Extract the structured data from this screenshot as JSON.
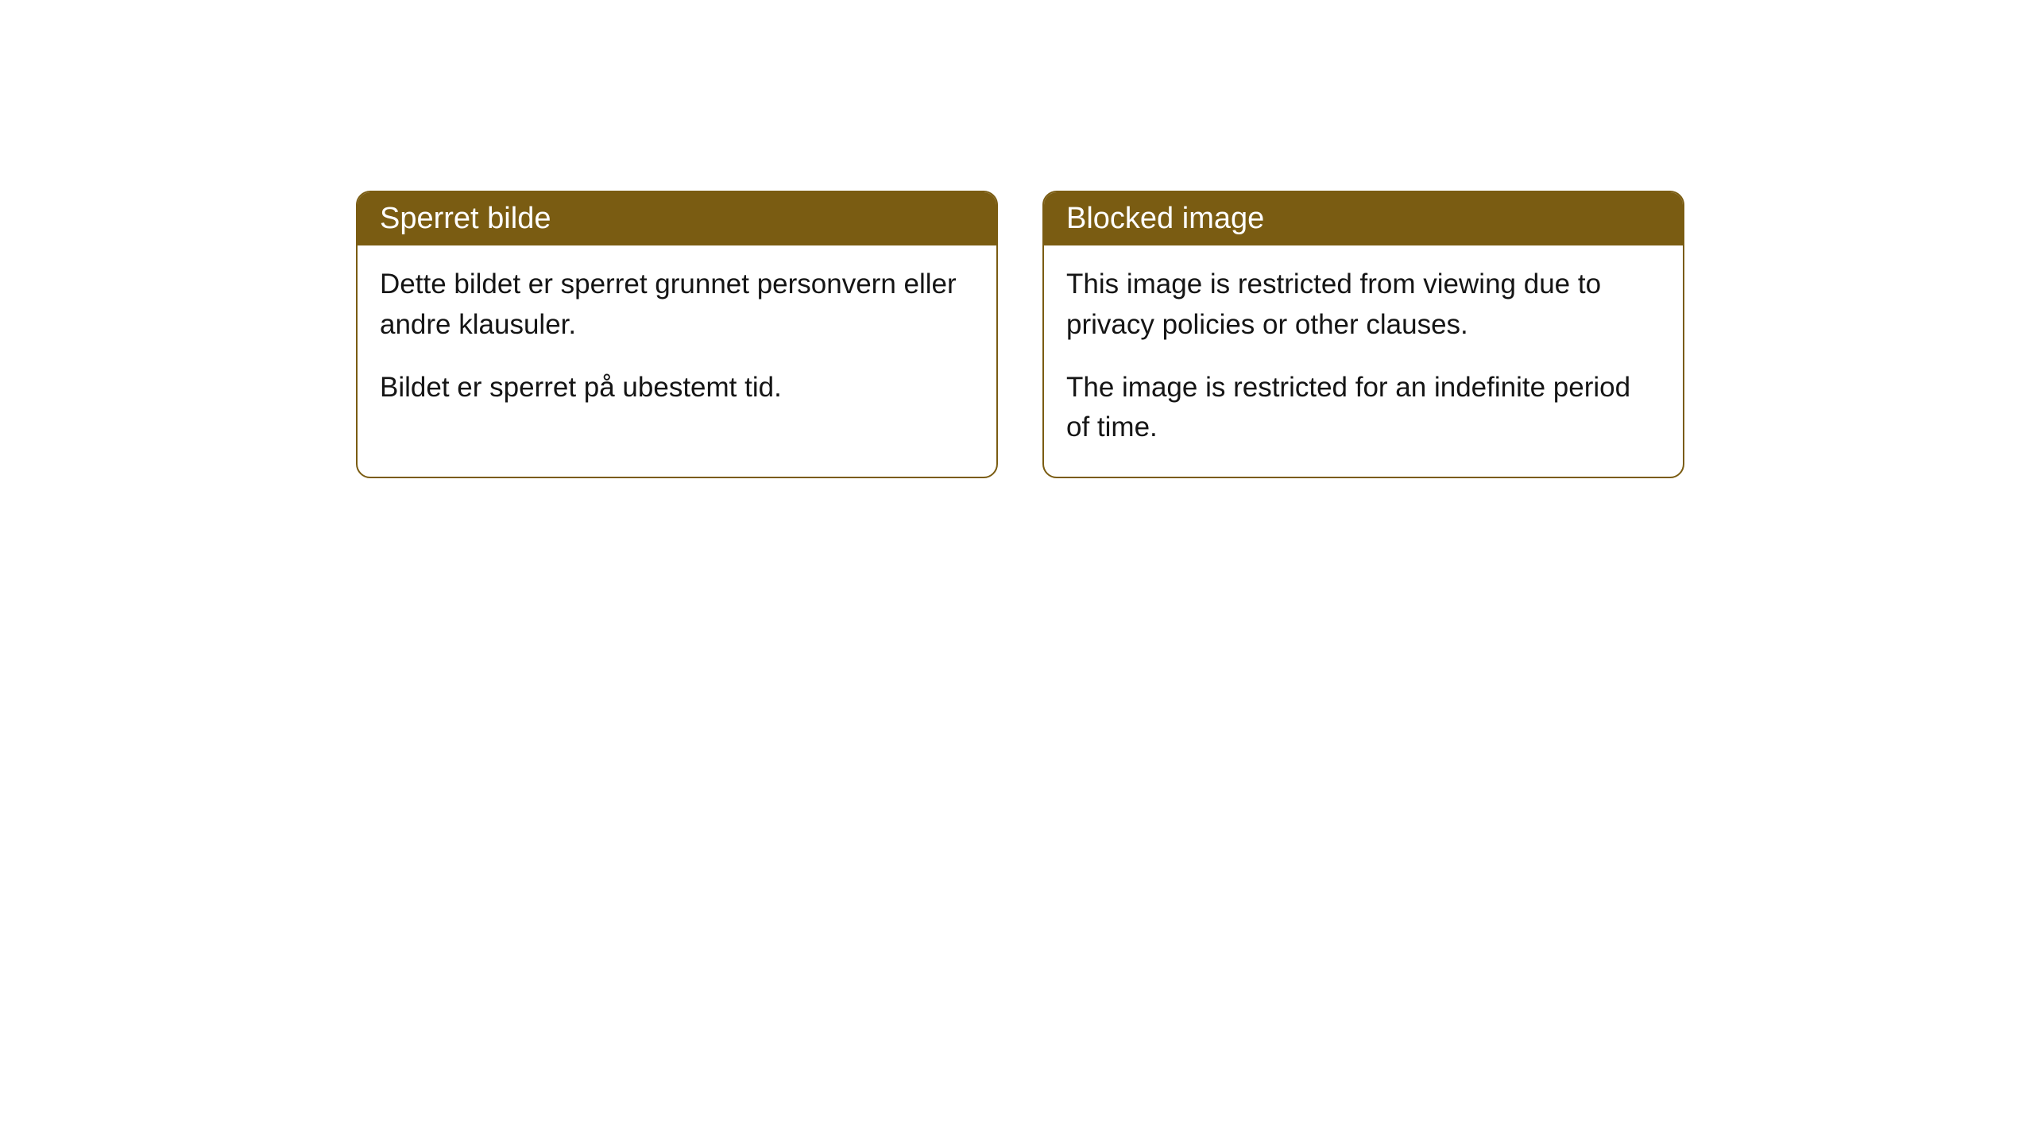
{
  "cards": [
    {
      "title": "Sperret bilde",
      "paragraph1": "Dette bildet er sperret grunnet personvern eller andre klausuler.",
      "paragraph2": "Bildet er sperret på ubestemt tid."
    },
    {
      "title": "Blocked image",
      "paragraph1": "This image is restricted from viewing due to privacy policies or other clauses.",
      "paragraph2": "The image is restricted for an indefinite period of time."
    }
  ],
  "styling": {
    "header_bg_color": "#7a5c12",
    "header_text_color": "#ffffff",
    "border_color": "#7a5c12",
    "body_bg_color": "#ffffff",
    "body_text_color": "#151515",
    "border_radius": 18,
    "header_fontsize": 38,
    "body_fontsize": 35
  }
}
